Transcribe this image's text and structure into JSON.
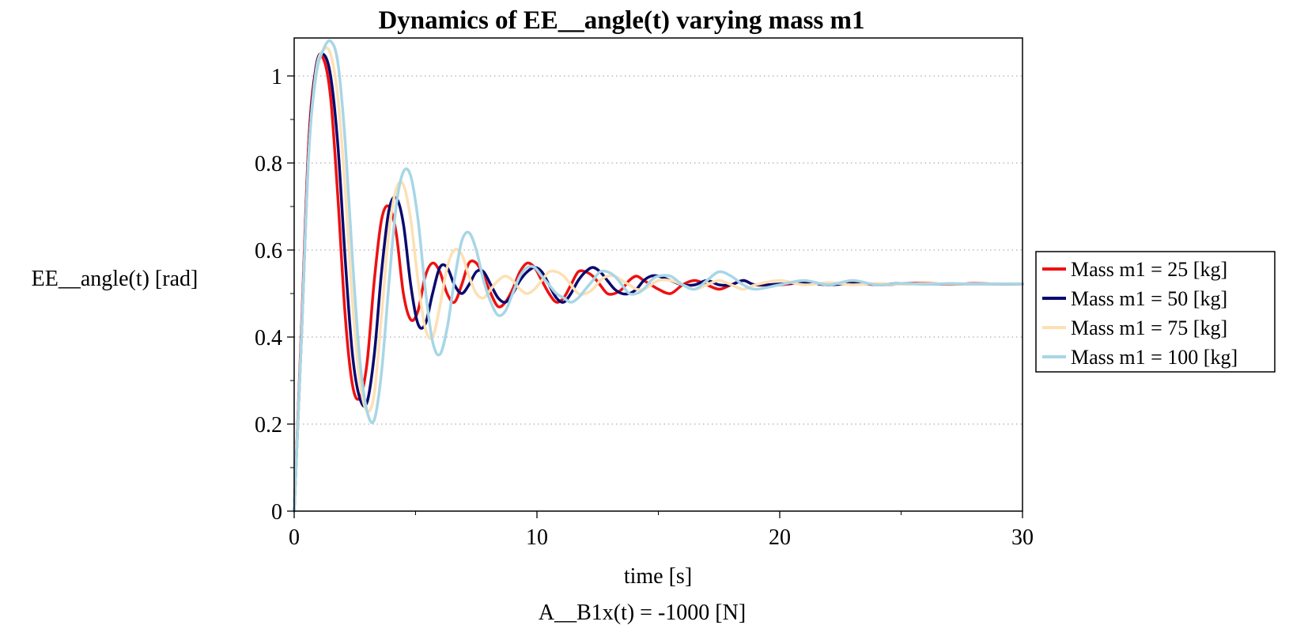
{
  "chart_data": {
    "type": "line",
    "title": "Dynamics of EE__angle(t) varying mass m1",
    "xlabel": "time [s]",
    "ylabel": "EE__angle(t) [rad]",
    "caption": "A__B1x(t) = -1000 [N]",
    "xlim": [
      0,
      30
    ],
    "ylim": [
      0,
      1.08
    ],
    "xticks": [
      0,
      10,
      20,
      30
    ],
    "xtick_labels": [
      "0",
      "10",
      "20",
      "30"
    ],
    "yticks": [
      0,
      0.2,
      0.4,
      0.6,
      0.8,
      1
    ],
    "ytick_labels": [
      "0",
      "0.2",
      "0.4",
      "0.6",
      "0.8",
      "1"
    ],
    "grid": "horizontal dotted",
    "legend_position": "right",
    "series": [
      {
        "name": "Mass m1 = 25 [kg]",
        "color": "#ee1111",
        "x": [
          0,
          0.3,
          0.6,
          0.9,
          1.2,
          1.5,
          1.8,
          2.1,
          2.4,
          2.7,
          3.0,
          3.3,
          3.6,
          3.9,
          4.2,
          4.5,
          4.8,
          5.1,
          5.4,
          5.7,
          6.0,
          6.3,
          6.6,
          6.9,
          7.2,
          7.5,
          7.8,
          8.1,
          8.4,
          8.7,
          9.0,
          9.3,
          9.6,
          9.9,
          10.2,
          10.5,
          10.8,
          11.1,
          11.4,
          11.7,
          12.0,
          12.3,
          12.6,
          12.9,
          13.2,
          13.5,
          13.8,
          14.1,
          14.4,
          14.7,
          15.0,
          15.5,
          16.0,
          16.5,
          17.0,
          17.5,
          18.0,
          18.5,
          19.0,
          20.0,
          21.0,
          22.0,
          23.0,
          24.0,
          25.0,
          26.0,
          27.0,
          28.0,
          29.0,
          30.0
        ],
        "y": [
          0.0,
          0.42,
          0.85,
          1.02,
          1.04,
          0.95,
          0.72,
          0.45,
          0.29,
          0.26,
          0.34,
          0.53,
          0.67,
          0.7,
          0.64,
          0.5,
          0.44,
          0.46,
          0.54,
          0.57,
          0.55,
          0.5,
          0.48,
          0.52,
          0.57,
          0.57,
          0.54,
          0.5,
          0.47,
          0.48,
          0.51,
          0.55,
          0.57,
          0.56,
          0.53,
          0.5,
          0.48,
          0.49,
          0.52,
          0.55,
          0.55,
          0.54,
          0.52,
          0.5,
          0.5,
          0.51,
          0.53,
          0.54,
          0.53,
          0.52,
          0.51,
          0.5,
          0.52,
          0.53,
          0.52,
          0.51,
          0.52,
          0.53,
          0.52,
          0.52,
          0.525,
          0.52,
          0.525,
          0.52,
          0.522,
          0.524,
          0.521,
          0.523,
          0.522,
          0.522
        ]
      },
      {
        "name": "Mass m1 = 50 [kg]",
        "color": "#0a0a6e",
        "x": [
          0,
          0.3,
          0.6,
          0.9,
          1.2,
          1.5,
          1.8,
          2.1,
          2.4,
          2.7,
          3.0,
          3.3,
          3.6,
          3.9,
          4.2,
          4.5,
          4.8,
          5.1,
          5.4,
          5.7,
          6.0,
          6.3,
          6.6,
          6.9,
          7.2,
          7.5,
          7.8,
          8.1,
          8.4,
          8.7,
          9.0,
          9.3,
          9.6,
          9.9,
          10.2,
          10.5,
          10.8,
          11.1,
          11.4,
          11.7,
          12.0,
          12.3,
          12.6,
          12.9,
          13.2,
          13.5,
          13.8,
          14.1,
          14.4,
          14.7,
          15.0,
          15.5,
          16.0,
          16.5,
          17.0,
          17.5,
          18.0,
          18.5,
          19.0,
          20.0,
          21.0,
          22.0,
          23.0,
          24.0,
          25.0,
          26.0,
          27.0,
          28.0,
          29.0,
          30.0
        ],
        "y": [
          0.0,
          0.4,
          0.83,
          1.02,
          1.05,
          1.0,
          0.84,
          0.58,
          0.36,
          0.26,
          0.25,
          0.36,
          0.55,
          0.69,
          0.72,
          0.66,
          0.52,
          0.43,
          0.43,
          0.5,
          0.56,
          0.56,
          0.52,
          0.5,
          0.52,
          0.55,
          0.55,
          0.52,
          0.49,
          0.48,
          0.5,
          0.53,
          0.55,
          0.56,
          0.55,
          0.52,
          0.49,
          0.48,
          0.5,
          0.53,
          0.55,
          0.56,
          0.55,
          0.53,
          0.51,
          0.5,
          0.5,
          0.51,
          0.53,
          0.54,
          0.54,
          0.53,
          0.52,
          0.52,
          0.53,
          0.52,
          0.52,
          0.53,
          0.52,
          0.522,
          0.525,
          0.52,
          0.523,
          0.521,
          0.523,
          0.522,
          0.522,
          0.522,
          0.522,
          0.522
        ]
      },
      {
        "name": "Mass m1 = 75 [kg]",
        "color": "#fde0b4",
        "x": [
          0,
          0.3,
          0.6,
          0.9,
          1.2,
          1.5,
          1.8,
          2.1,
          2.4,
          2.7,
          3.0,
          3.3,
          3.6,
          3.9,
          4.2,
          4.5,
          4.8,
          5.1,
          5.4,
          5.7,
          6.0,
          6.3,
          6.6,
          6.9,
          7.2,
          7.5,
          7.8,
          8.1,
          8.4,
          8.7,
          9.0,
          9.3,
          9.6,
          9.9,
          10.2,
          10.5,
          10.8,
          11.1,
          11.4,
          11.7,
          12.0,
          12.3,
          12.6,
          12.9,
          13.2,
          13.5,
          13.8,
          14.1,
          14.4,
          14.7,
          15.0,
          15.5,
          16.0,
          16.5,
          17.0,
          17.5,
          18.0,
          18.5,
          19.0,
          20.0,
          21.0,
          22.0,
          23.0,
          24.0,
          25.0,
          26.0,
          27.0,
          28.0,
          29.0,
          30.0
        ],
        "y": [
          0.0,
          0.4,
          0.82,
          1.01,
          1.06,
          1.05,
          0.95,
          0.74,
          0.48,
          0.3,
          0.23,
          0.27,
          0.45,
          0.64,
          0.74,
          0.75,
          0.67,
          0.53,
          0.42,
          0.4,
          0.47,
          0.56,
          0.6,
          0.59,
          0.54,
          0.5,
          0.49,
          0.51,
          0.53,
          0.54,
          0.53,
          0.51,
          0.5,
          0.51,
          0.53,
          0.55,
          0.55,
          0.54,
          0.52,
          0.5,
          0.5,
          0.51,
          0.53,
          0.54,
          0.54,
          0.53,
          0.52,
          0.51,
          0.51,
          0.52,
          0.53,
          0.53,
          0.52,
          0.51,
          0.52,
          0.53,
          0.52,
          0.51,
          0.52,
          0.53,
          0.52,
          0.525,
          0.52,
          0.523,
          0.521,
          0.523,
          0.522,
          0.522,
          0.522,
          0.522
        ]
      },
      {
        "name": "Mass m1 = 100 [kg]",
        "color": "#a8d6e6",
        "x": [
          0,
          0.3,
          0.6,
          0.9,
          1.2,
          1.5,
          1.8,
          2.1,
          2.4,
          2.7,
          3.0,
          3.3,
          3.6,
          3.9,
          4.2,
          4.5,
          4.8,
          5.1,
          5.4,
          5.7,
          6.0,
          6.3,
          6.6,
          6.9,
          7.2,
          7.5,
          7.8,
          8.1,
          8.4,
          8.7,
          9.0,
          9.3,
          9.6,
          9.9,
          10.2,
          10.5,
          10.8,
          11.1,
          11.4,
          11.7,
          12.0,
          12.3,
          12.6,
          12.9,
          13.2,
          13.5,
          13.8,
          14.1,
          14.4,
          14.7,
          15.0,
          15.5,
          16.0,
          16.5,
          17.0,
          17.5,
          18.0,
          18.5,
          19.0,
          20.0,
          21.0,
          22.0,
          23.0,
          24.0,
          25.0,
          26.0,
          27.0,
          28.0,
          29.0,
          30.0
        ],
        "y": [
          0.0,
          0.4,
          0.82,
          1.0,
          1.06,
          1.08,
          1.03,
          0.85,
          0.58,
          0.35,
          0.23,
          0.21,
          0.32,
          0.52,
          0.7,
          0.78,
          0.77,
          0.67,
          0.51,
          0.39,
          0.36,
          0.42,
          0.53,
          0.62,
          0.64,
          0.6,
          0.53,
          0.48,
          0.45,
          0.46,
          0.5,
          0.54,
          0.56,
          0.56,
          0.54,
          0.52,
          0.5,
          0.49,
          0.48,
          0.49,
          0.51,
          0.53,
          0.55,
          0.55,
          0.54,
          0.52,
          0.5,
          0.5,
          0.51,
          0.53,
          0.54,
          0.54,
          0.52,
          0.51,
          0.53,
          0.55,
          0.54,
          0.52,
          0.51,
          0.52,
          0.53,
          0.52,
          0.53,
          0.52,
          0.523,
          0.521,
          0.523,
          0.522,
          0.522,
          0.522
        ]
      }
    ]
  }
}
